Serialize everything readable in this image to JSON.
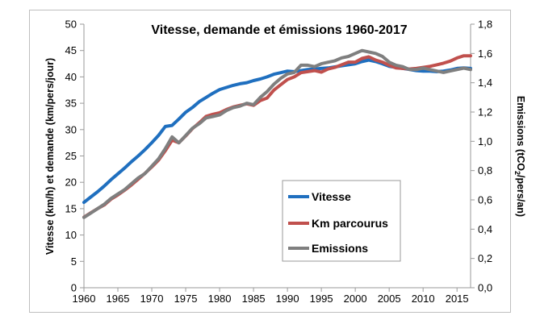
{
  "chart_data": {
    "type": "line",
    "title": "Vitesse, demande et émissions 1960-2017",
    "xlabel": "",
    "ylabel_left": "Vitesse (km/h) et demande (km/pers/jour)",
    "ylabel_right_prefix": "Emissions (tCO",
    "ylabel_right_sub": "2",
    "ylabel_right_suffix": "/pers/an)",
    "xlim": [
      1960,
      2017
    ],
    "ylim_left": [
      0,
      50
    ],
    "ylim_right": [
      0,
      1.8
    ],
    "x_ticks": [
      "1960",
      "1965",
      "1970",
      "1975",
      "1980",
      "1985",
      "1990",
      "1995",
      "2000",
      "2005",
      "2010",
      "2015"
    ],
    "y_left_ticks": [
      "0",
      "5",
      "10",
      "15",
      "20",
      "25",
      "30",
      "35",
      "40",
      "45",
      "50"
    ],
    "y_right_ticks": [
      "0,0",
      "0,2",
      "0,4",
      "0,6",
      "0,8",
      "1,0",
      "1,2",
      "1,4",
      "1,6",
      "1,8"
    ],
    "x": [
      1960,
      1961,
      1962,
      1963,
      1964,
      1965,
      1966,
      1967,
      1968,
      1969,
      1970,
      1971,
      1972,
      1973,
      1974,
      1975,
      1976,
      1977,
      1978,
      1979,
      1980,
      1981,
      1982,
      1983,
      1984,
      1985,
      1986,
      1987,
      1988,
      1989,
      1990,
      1991,
      1992,
      1993,
      1994,
      1995,
      1996,
      1997,
      1998,
      1999,
      2000,
      2001,
      2002,
      2003,
      2004,
      2005,
      2006,
      2007,
      2008,
      2009,
      2010,
      2011,
      2012,
      2013,
      2014,
      2015,
      2016,
      2017
    ],
    "series": [
      {
        "name": "Vitesse",
        "axis": "left",
        "color": "#1f6fbf",
        "values": [
          16.2,
          17.2,
          18.2,
          19.3,
          20.5,
          21.6,
          22.7,
          23.9,
          25.0,
          26.2,
          27.5,
          28.9,
          30.6,
          30.8,
          32.0,
          33.3,
          34.2,
          35.3,
          36.1,
          36.9,
          37.6,
          38.0,
          38.4,
          38.7,
          38.9,
          39.3,
          39.6,
          40.0,
          40.5,
          40.8,
          41.1,
          41.0,
          41.2,
          41.4,
          41.5,
          41.6,
          41.7,
          41.9,
          42.1,
          42.3,
          42.5,
          42.9,
          43.2,
          42.9,
          42.5,
          42.0,
          41.8,
          41.6,
          41.4,
          41.2,
          41.1,
          41.1,
          41.0,
          41.1,
          41.3,
          41.6,
          41.7,
          41.6
        ]
      },
      {
        "name": "Km parcourus",
        "axis": "left",
        "color": "#c0504d",
        "values": [
          13.4,
          14.2,
          15.0,
          15.7,
          16.8,
          17.6,
          18.5,
          19.5,
          20.6,
          21.7,
          22.9,
          24.2,
          26.0,
          28.0,
          27.5,
          28.8,
          30.2,
          31.3,
          32.5,
          32.9,
          33.2,
          33.8,
          34.3,
          34.6,
          34.9,
          34.6,
          35.5,
          36.0,
          37.5,
          38.5,
          39.5,
          40.0,
          40.8,
          41.0,
          41.2,
          40.9,
          41.5,
          41.8,
          42.3,
          42.8,
          42.8,
          43.5,
          43.8,
          43.2,
          42.8,
          42.2,
          41.7,
          41.6,
          41.5,
          41.6,
          41.8,
          42.0,
          42.3,
          42.6,
          43.0,
          43.6,
          44.0,
          44.0
        ]
      },
      {
        "name": "Emissions",
        "axis": "right",
        "color": "#7f7f7f",
        "values": [
          0.48,
          0.51,
          0.54,
          0.57,
          0.61,
          0.64,
          0.67,
          0.71,
          0.75,
          0.78,
          0.83,
          0.88,
          0.95,
          1.03,
          0.99,
          1.04,
          1.09,
          1.12,
          1.16,
          1.17,
          1.18,
          1.21,
          1.23,
          1.24,
          1.26,
          1.25,
          1.3,
          1.34,
          1.39,
          1.43,
          1.46,
          1.47,
          1.52,
          1.52,
          1.51,
          1.53,
          1.54,
          1.55,
          1.57,
          1.58,
          1.6,
          1.62,
          1.61,
          1.6,
          1.58,
          1.54,
          1.52,
          1.51,
          1.49,
          1.49,
          1.5,
          1.49,
          1.48,
          1.47,
          1.48,
          1.49,
          1.5,
          1.49
        ]
      }
    ],
    "legend": {
      "position": "lower-middle",
      "entries": [
        "Vitesse",
        "Km parcourus",
        "Emissions"
      ]
    }
  }
}
